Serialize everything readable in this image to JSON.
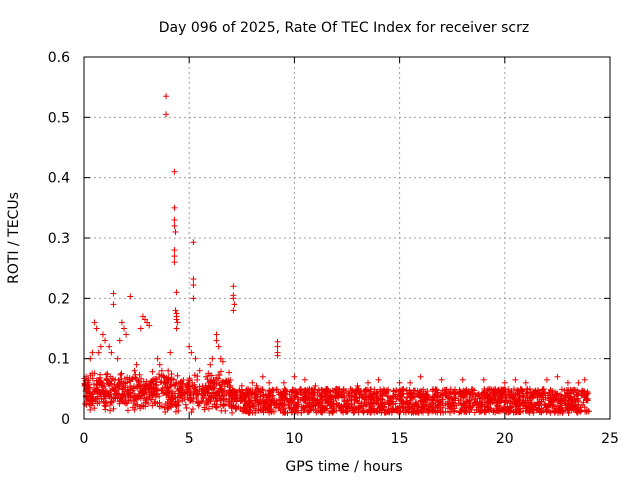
{
  "chart_data": {
    "type": "scatter",
    "title": "Day 096 of 2025, Rate Of TEC Index for receiver scrz",
    "xlabel": "GPS time / hours",
    "ylabel": "ROTI / TECUs",
    "xlim": [
      0,
      25
    ],
    "ylim": [
      0,
      0.6
    ],
    "xticks": [
      0,
      5,
      10,
      15,
      20,
      25
    ],
    "xtick_labels": [
      "0",
      "5",
      "10",
      "15",
      "20",
      "25"
    ],
    "yticks": [
      0,
      0.1,
      0.2,
      0.3,
      0.4,
      0.5,
      0.6
    ],
    "ytick_labels": [
      "0",
      "0.1",
      "0.2",
      "0.3",
      "0.4",
      "0.5",
      "0.6"
    ],
    "grid": true,
    "marker": "+",
    "color": "#ee0000",
    "x_extent": [
      0,
      24
    ],
    "background_band": [
      0.01,
      0.05
    ],
    "series": [
      {
        "name": "ROTI",
        "x": [
          3.9,
          3.9,
          4.3,
          4.3,
          4.3,
          4.3,
          4.35,
          4.3,
          4.3,
          4.3,
          4.4,
          4.35,
          4.4,
          4.4,
          4.4,
          4.45,
          4.4,
          5.2,
          5.2,
          5.2,
          5.2,
          1.4,
          1.4,
          2.2,
          7.1,
          7.1,
          7.1,
          7.15,
          7.1,
          9.2,
          9.2,
          9.2,
          9.2,
          2.8,
          2.9,
          3.0,
          2.7,
          3.1,
          0.9,
          1.0,
          1.8,
          1.9,
          2.0,
          0.7,
          0.8,
          0.5,
          0.6,
          6.3,
          6.3,
          6.4,
          6.5,
          6.1,
          6.0,
          6.6,
          1.2,
          1.3,
          2.4,
          2.5,
          1.6,
          1.7,
          5.0,
          5.1,
          5.3,
          5.5,
          5.8,
          3.5,
          3.6,
          3.7,
          4.0,
          4.1,
          8.0,
          8.2,
          8.5,
          8.8,
          9.5,
          10.0,
          10.5,
          11.0,
          11.5,
          12.0,
          13.0,
          13.5,
          14.0,
          15.0,
          15.5,
          16.0,
          17.0,
          18.0,
          19.0,
          20.0,
          20.5,
          21.0,
          22.0,
          22.5,
          23.0,
          23.5,
          23.8,
          0.1,
          0.2,
          0.3,
          0.4,
          7.5,
          7.8
        ],
        "y": [
          0.535,
          0.505,
          0.41,
          0.35,
          0.33,
          0.32,
          0.31,
          0.28,
          0.27,
          0.26,
          0.21,
          0.18,
          0.175,
          0.17,
          0.165,
          0.16,
          0.15,
          0.293,
          0.232,
          0.222,
          0.2,
          0.208,
          0.19,
          0.203,
          0.22,
          0.205,
          0.2,
          0.19,
          0.18,
          0.128,
          0.12,
          0.11,
          0.105,
          0.17,
          0.165,
          0.16,
          0.15,
          0.155,
          0.14,
          0.13,
          0.16,
          0.15,
          0.14,
          0.11,
          0.12,
          0.16,
          0.15,
          0.14,
          0.13,
          0.12,
          0.1,
          0.1,
          0.09,
          0.095,
          0.12,
          0.11,
          0.08,
          0.09,
          0.1,
          0.13,
          0.12,
          0.11,
          0.1,
          0.08,
          0.07,
          0.1,
          0.09,
          0.08,
          0.08,
          0.11,
          0.06,
          0.055,
          0.07,
          0.06,
          0.06,
          0.07,
          0.065,
          0.055,
          0.05,
          0.05,
          0.055,
          0.06,
          0.065,
          0.06,
          0.06,
          0.07,
          0.065,
          0.065,
          0.065,
          0.06,
          0.065,
          0.06,
          0.065,
          0.07,
          0.06,
          0.06,
          0.065,
          0.07,
          0.06,
          0.1,
          0.11,
          0.055,
          0.05
        ]
      }
    ]
  }
}
